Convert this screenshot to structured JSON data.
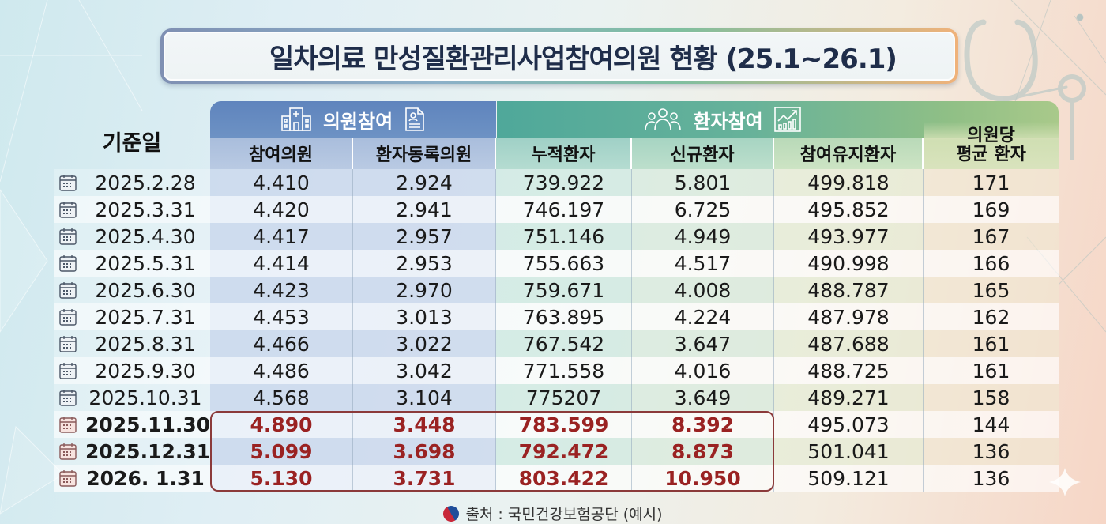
{
  "title": "일차의료 만성질환관리사업참여의원 현황 (25.1~26.1)",
  "header": {
    "base_date": "기준일",
    "group_clinic": "의원참여",
    "group_patient": "환자참여",
    "columns": [
      "참여의원",
      "환자동록의원",
      "누적환자",
      "신규환자",
      "참여유지환자"
    ],
    "avg_line1": "의원당",
    "avg_line2": "평균 환자"
  },
  "rows": [
    {
      "date": "2025.2.28",
      "v": [
        "4.410",
        "2.924",
        "739.922",
        "5.801",
        "499.818",
        "171"
      ],
      "highlight": false
    },
    {
      "date": "2025.3.31",
      "v": [
        "4.420",
        "2.941",
        "746.197",
        "6.725",
        "495.852",
        "169"
      ],
      "highlight": false
    },
    {
      "date": "2025.4.30",
      "v": [
        "4.417",
        "2.957",
        "751.146",
        "4.949",
        "493.977",
        "167"
      ],
      "highlight": false
    },
    {
      "date": "2025.5.31",
      "v": [
        "4.414",
        "2.953",
        "755.663",
        "4.517",
        "490.998",
        "166"
      ],
      "highlight": false
    },
    {
      "date": "2025.6.30",
      "v": [
        "4.423",
        "2.970",
        "759.671",
        "4.008",
        "488.787",
        "165"
      ],
      "highlight": false
    },
    {
      "date": "2025.7.31",
      "v": [
        "4.453",
        "3.013",
        "763.895",
        "4.224",
        "487.978",
        "162"
      ],
      "highlight": false
    },
    {
      "date": "2025.8.31",
      "v": [
        "4.466",
        "3.022",
        "767.542",
        "3.647",
        "487.688",
        "161"
      ],
      "highlight": false
    },
    {
      "date": "2025.9.30",
      "v": [
        "4.486",
        "3.042",
        "771.558",
        "4.016",
        "488.725",
        "161"
      ],
      "highlight": false
    },
    {
      "date": "2025.10.31",
      "v": [
        "4.568",
        "3.104",
        "775207",
        "3.649",
        "489.271",
        "158"
      ],
      "highlight": false
    },
    {
      "date": "2025.11.30",
      "v": [
        "4.890",
        "3.448",
        "783.599",
        "8.392",
        "495.073",
        "144"
      ],
      "highlight": true
    },
    {
      "date": "2025.12.31",
      "v": [
        "5.099",
        "3.698",
        "792.472",
        "8.873",
        "501.041",
        "136"
      ],
      "highlight": true
    },
    {
      "date": "2026. 1.31",
      "v": [
        "5.130",
        "3.731",
        "803.422",
        "10.950",
        "509.121",
        "136"
      ],
      "highlight": true
    }
  ],
  "source": "출처 : 국민건강보험공단 (예시)",
  "icons": {
    "clinic_group": "hospital-icon",
    "clinic_doc": "document-icon",
    "patient_group": "people-icon",
    "patient_chart": "growth-chart-icon",
    "row": "calendar-icon",
    "source": "government-logo-icon"
  },
  "colors": {
    "clinic_header": "#5f84bd",
    "patient_header": "#4fa89a",
    "highlight_text": "#9a2222",
    "highlight_border": "#8b3a3a",
    "title_text": "#1f2d4a"
  },
  "chart_data": {
    "type": "table",
    "title": "일차의료 만성질환관리사업참여의원 현황 (25.1~26.1)",
    "column_groups": [
      {
        "name": "의원참여",
        "columns": [
          "참여의원",
          "환자동록의원"
        ]
      },
      {
        "name": "환자참여",
        "columns": [
          "누적환자",
          "신규환자",
          "참여유지환자"
        ]
      }
    ],
    "columns": [
      "기준일",
      "참여의원",
      "환자동록의원",
      "누적환자",
      "신규환자",
      "참여유지환자",
      "의원당 평균 환자"
    ],
    "categories": [
      "2025.2.28",
      "2025.3.31",
      "2025.4.30",
      "2025.5.31",
      "2025.6.30",
      "2025.7.31",
      "2025.8.31",
      "2025.9.30",
      "2025.10.31",
      "2025.11.30",
      "2025.12.31",
      "2026.1.31"
    ],
    "series": [
      {
        "name": "참여의원",
        "values": [
          4410,
          4420,
          4417,
          4414,
          4423,
          4453,
          4466,
          4486,
          4568,
          4890,
          5099,
          5130
        ]
      },
      {
        "name": "환자동록의원",
        "values": [
          2924,
          2941,
          2957,
          2953,
          2970,
          3013,
          3022,
          3042,
          3104,
          3448,
          3698,
          3731
        ]
      },
      {
        "name": "누적환자",
        "values": [
          739922,
          746197,
          751146,
          755663,
          759671,
          763895,
          767542,
          771558,
          775207,
          783599,
          792472,
          803422
        ]
      },
      {
        "name": "신규환자",
        "values": [
          5801,
          6725,
          4949,
          4517,
          4008,
          4224,
          3647,
          4016,
          3649,
          8392,
          8873,
          10950
        ]
      },
      {
        "name": "참여유지환자",
        "values": [
          499818,
          495852,
          493977,
          490998,
          488787,
          487978,
          487688,
          488725,
          489271,
          495073,
          501041,
          509121
        ]
      },
      {
        "name": "의원당 평균 환자",
        "values": [
          171,
          169,
          167,
          166,
          165,
          162,
          161,
          161,
          158,
          144,
          136,
          136
        ]
      }
    ],
    "highlighted_rows": [
      "2025.11.30",
      "2025.12.31",
      "2026.1.31"
    ],
    "highlighted_columns": [
      "참여의원",
      "환자동록의원",
      "누적환자",
      "신규환자"
    ],
    "note": "출처 : 국민건강보험공단 (예시)"
  }
}
